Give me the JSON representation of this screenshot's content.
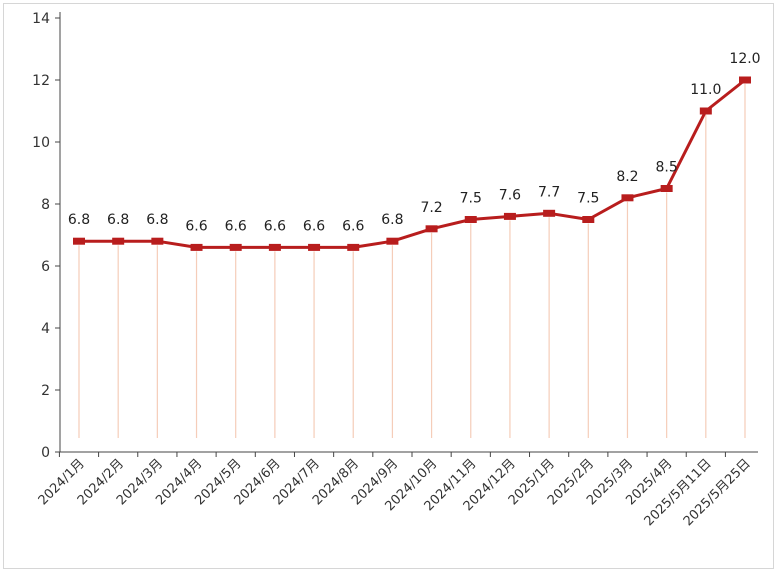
{
  "chart_data": {
    "type": "line",
    "categories": [
      "2024/1月",
      "2024/2月",
      "2024/3月",
      "2024/4月",
      "2024/5月",
      "2024/6月",
      "2024/7月",
      "2024/8月",
      "2024/9月",
      "2024/10月",
      "2024/11月",
      "2024/12月",
      "2025/1月",
      "2025/2月",
      "2025/3月",
      "2025/4月",
      "2025/5月11日",
      "2025/5月25日"
    ],
    "series": [
      {
        "values": [
          6.8,
          6.8,
          6.8,
          6.6,
          6.6,
          6.6,
          6.6,
          6.6,
          6.8,
          7.2,
          7.5,
          7.6,
          7.7,
          7.5,
          8.2,
          8.5,
          11.0,
          12.0
        ],
        "labels": [
          "6.8",
          "6.8",
          "6.8",
          "6.6",
          "6.6",
          "6.6",
          "6.6",
          "6.6",
          "6.8",
          "7.2",
          "7.5",
          "7.6",
          "7.7",
          "7.5",
          "8.2",
          "8.5",
          "11.0",
          "12.0"
        ]
      }
    ],
    "ylim": [
      0,
      14
    ],
    "yticks": [
      "0",
      "2",
      "4",
      "6",
      "8",
      "10",
      "12",
      "14"
    ],
    "grid": false,
    "colors": {
      "line": "#b81d1d",
      "marker": "#b81d1d",
      "drop_line": "#f3c1a8"
    }
  }
}
